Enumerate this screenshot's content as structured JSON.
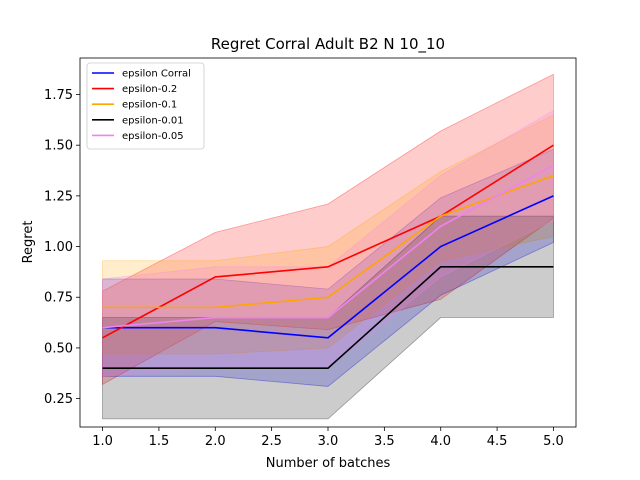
{
  "chart_data": {
    "type": "line",
    "title": "Regret Corral Adult B2 N 10_10",
    "xlabel": "Number of batches",
    "ylabel": "Regret",
    "xlim": [
      0.8,
      5.2
    ],
    "ylim": [
      0.11,
      1.93
    ],
    "xticks": [
      1.0,
      1.5,
      2.0,
      2.5,
      3.0,
      3.5,
      4.0,
      4.5,
      5.0
    ],
    "xtick_labels": [
      "1.0",
      "1.5",
      "2.0",
      "2.5",
      "3.0",
      "3.5",
      "4.0",
      "4.5",
      "5.0"
    ],
    "yticks": [
      0.25,
      0.5,
      0.75,
      1.0,
      1.25,
      1.5,
      1.75
    ],
    "ytick_labels": [
      "0.25",
      "0.50",
      "0.75",
      "1.00",
      "1.25",
      "1.50",
      "1.75"
    ],
    "grid": false,
    "legend_position": "top-left",
    "x": [
      1,
      2,
      3,
      4,
      5
    ],
    "series": [
      {
        "name": "epsilon Corral",
        "color": "#0000ff",
        "values": [
          0.6,
          0.6,
          0.55,
          1.0,
          1.25
        ],
        "lower": [
          0.36,
          0.36,
          0.31,
          0.76,
          1.02
        ],
        "upper": [
          0.84,
          0.84,
          0.79,
          1.24,
          1.48
        ]
      },
      {
        "name": "epsilon-0.2",
        "color": "#ff0000",
        "values": [
          0.55,
          0.85,
          0.9,
          1.15,
          1.5
        ],
        "lower": [
          0.32,
          0.63,
          0.59,
          0.74,
          1.14
        ],
        "upper": [
          0.78,
          1.07,
          1.21,
          1.57,
          1.85
        ]
      },
      {
        "name": "epsilon-0.1",
        "color": "#ffa500",
        "values": [
          0.7,
          0.7,
          0.75,
          1.15,
          1.35
        ],
        "lower": [
          0.47,
          0.47,
          0.5,
          0.93,
          1.05
        ],
        "upper": [
          0.93,
          0.93,
          1.0,
          1.37,
          1.65
        ]
      },
      {
        "name": "epsilon-0.01",
        "color": "#000000",
        "values": [
          0.4,
          0.4,
          0.4,
          0.9,
          0.9
        ],
        "lower": [
          0.15,
          0.15,
          0.15,
          0.65,
          0.65
        ],
        "upper": [
          0.65,
          0.65,
          0.65,
          1.15,
          1.15
        ]
      },
      {
        "name": "epsilon-0.05",
        "color": "#ee82ee",
        "values": [
          0.6,
          0.65,
          0.65,
          1.1,
          1.4
        ],
        "lower": [
          0.36,
          0.4,
          0.4,
          0.85,
          1.13
        ],
        "upper": [
          0.84,
          0.9,
          0.9,
          1.35,
          1.67
        ]
      }
    ]
  }
}
